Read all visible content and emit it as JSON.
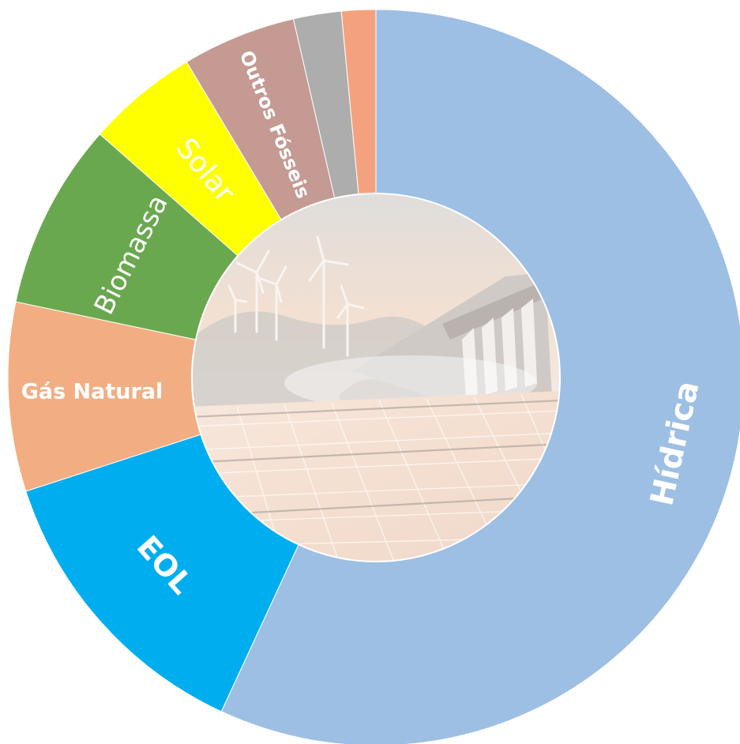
{
  "chart_data": {
    "type": "pie",
    "variant": "donut",
    "title": "",
    "start": "top",
    "direction": "clockwise",
    "center_image": "photo of wind turbines, hydroelectric dam and solar panels",
    "slices": [
      {
        "key": "hidrica",
        "label": "Hídrica",
        "value": 56.9,
        "color": "#9dbfe3"
      },
      {
        "key": "eol",
        "label": "EOL",
        "value": 13.1,
        "color": "#00aeef"
      },
      {
        "key": "gas",
        "label": "Gás Natural",
        "value": 8.3,
        "color": "#f2ae82"
      },
      {
        "key": "biomassa",
        "label": "Biomassa",
        "value": 8.2,
        "color": "#6aa84f"
      },
      {
        "key": "solar",
        "label": "Solar",
        "value": 4.9,
        "color": "#ffff00"
      },
      {
        "key": "outros",
        "label": "Outros Fósseis",
        "value": 5.0,
        "color": "#c49a92"
      },
      {
        "key": "cinza",
        "label": "",
        "value": 2.1,
        "color": "#adadad"
      },
      {
        "key": "laranja",
        "label": "",
        "value": 1.5,
        "color": "#f4a27e"
      }
    ]
  }
}
